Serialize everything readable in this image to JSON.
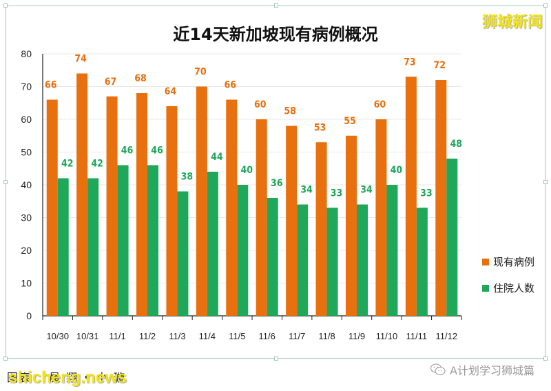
{
  "brand": "狮城新闻",
  "footer": {
    "credit": "图表： 晨 翔 • 小 璇",
    "site": "shicheng.news",
    "wechat": "A计划学习狮城篇"
  },
  "colors": {
    "current": "#e8700e",
    "hospital": "#1fa75a",
    "grid": "#e8e8e8"
  },
  "chart_data": {
    "type": "bar",
    "title": "近14天新加坡现有病例概况",
    "categories": [
      "10/30",
      "10/31",
      "11/1",
      "11/2",
      "11/3",
      "11/4",
      "11/5",
      "11/6",
      "11/7",
      "11/8",
      "11/9",
      "11/10",
      "11/11",
      "11/12"
    ],
    "series": [
      {
        "name": "现有病例",
        "values": [
          66,
          74,
          67,
          68,
          64,
          70,
          66,
          60,
          58,
          53,
          55,
          60,
          73,
          72
        ]
      },
      {
        "name": "住院人数",
        "values": [
          42,
          42,
          46,
          46,
          38,
          44,
          40,
          36,
          34,
          33,
          34,
          40,
          33,
          48
        ]
      }
    ],
    "ylim": [
      0,
      80
    ],
    "yticks": [
      0,
      10,
      20,
      30,
      40,
      50,
      60,
      70,
      80
    ],
    "grid": true,
    "legend": "right"
  }
}
